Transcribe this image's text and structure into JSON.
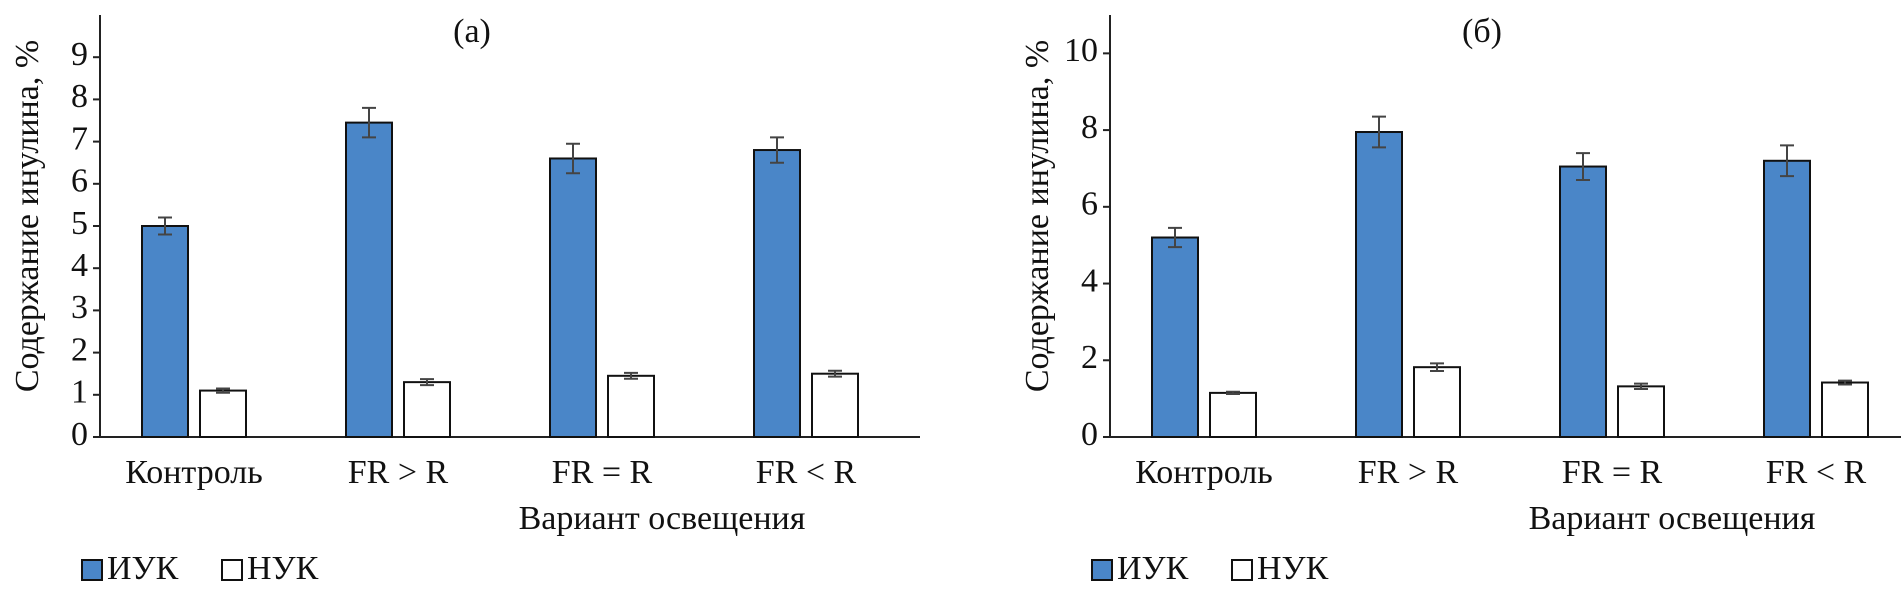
{
  "chart_data": [
    {
      "type": "bar",
      "title": "(а)",
      "y_label": "Содержание инулина, %",
      "x_label": "Вариант освещения",
      "categories": [
        "Контроль",
        "FR > R",
        "FR = R",
        "FR < R"
      ],
      "series": [
        {
          "name": "ИУК",
          "color": "#4a86c8",
          "values": [
            5.0,
            7.45,
            6.6,
            6.8
          ],
          "errors": [
            0.2,
            0.35,
            0.35,
            0.3
          ]
        },
        {
          "name": "НУК",
          "color": "#ffffff",
          "values": [
            1.1,
            1.3,
            1.45,
            1.5
          ],
          "errors": [
            0.05,
            0.07,
            0.07,
            0.07
          ]
        }
      ],
      "ylim": [
        0,
        10
      ],
      "yticks": [
        0,
        1,
        2,
        3,
        4,
        5,
        6,
        7,
        8,
        9
      ]
    },
    {
      "type": "bar",
      "title": "(б)",
      "y_label": "Содержание инулина, %",
      "x_label": "Вариант освещения",
      "categories": [
        "Контроль",
        "FR > R",
        "FR = R",
        "FR < R"
      ],
      "series": [
        {
          "name": "ИУК",
          "color": "#4a86c8",
          "values": [
            5.2,
            7.95,
            7.05,
            7.2
          ],
          "errors": [
            0.25,
            0.4,
            0.35,
            0.4
          ]
        },
        {
          "name": "НУК",
          "color": "#ffffff",
          "values": [
            1.15,
            1.82,
            1.32,
            1.42
          ],
          "errors": [
            0.03,
            0.1,
            0.07,
            0.05
          ]
        }
      ],
      "ylim": [
        0,
        11
      ],
      "yticks": [
        0,
        2,
        4,
        6,
        8,
        10
      ]
    }
  ]
}
